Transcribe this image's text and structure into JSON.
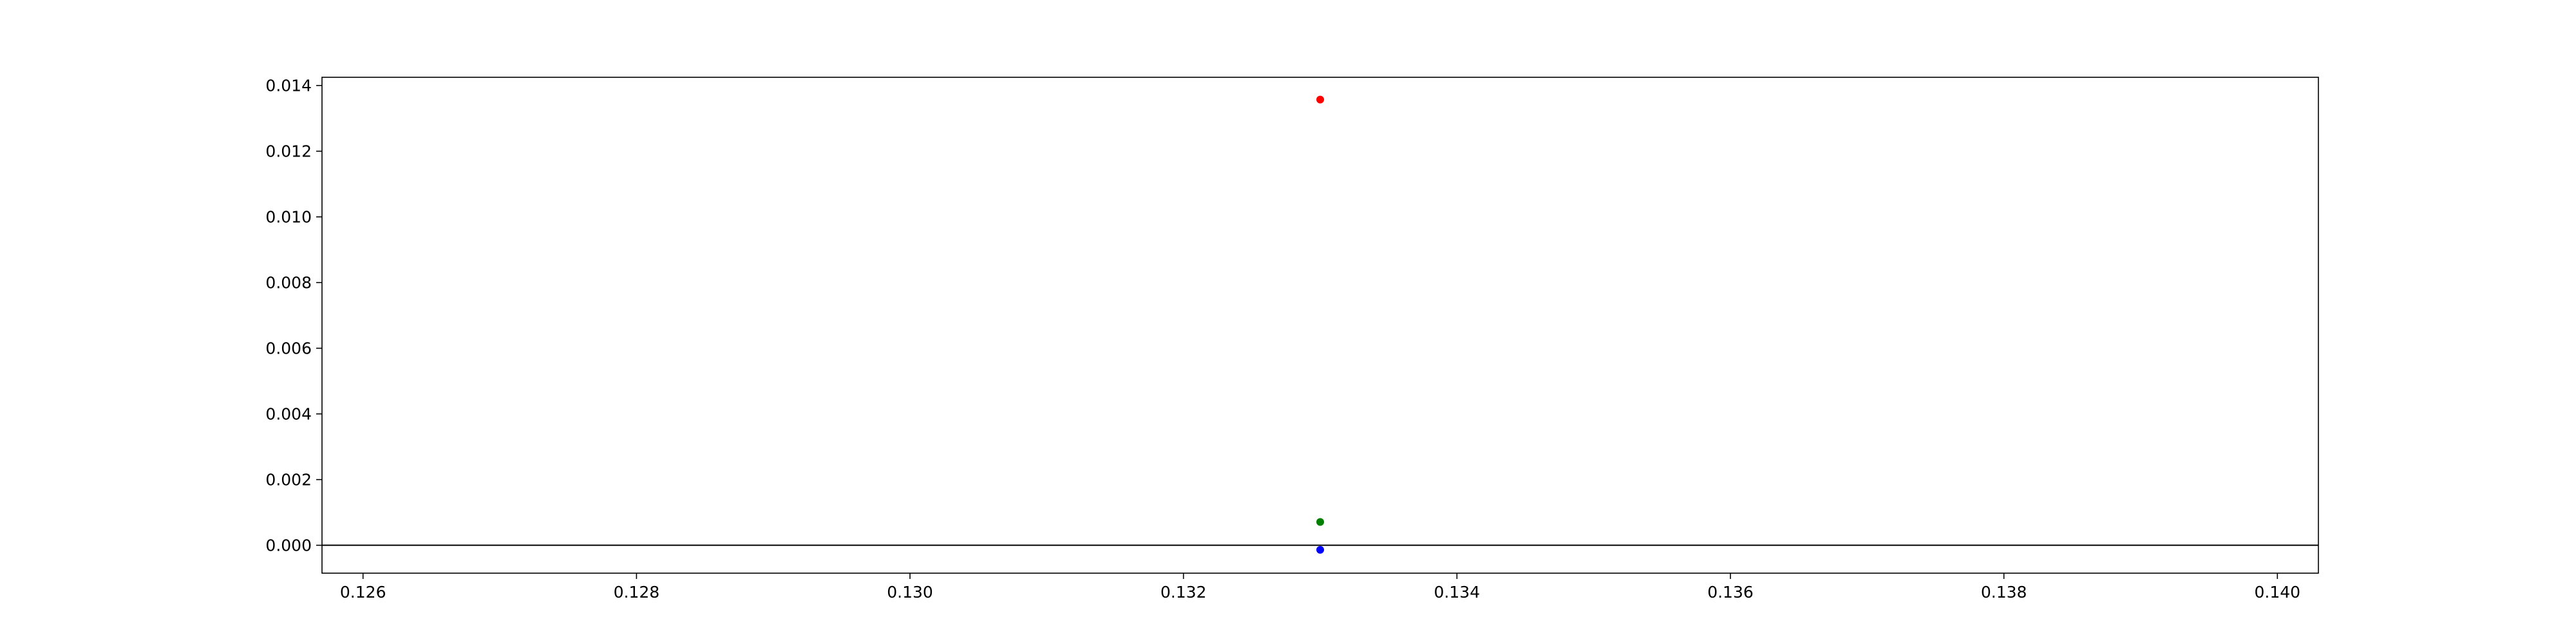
{
  "chart_data": {
    "type": "scatter",
    "title": "",
    "xlabel": "",
    "ylabel": "",
    "xlim": [
      0.1257,
      0.1403
    ],
    "ylim": [
      -0.00085,
      0.01425
    ],
    "grid": false,
    "x_ticks": [
      "0.126",
      "0.128",
      "0.130",
      "0.132",
      "0.134",
      "0.136",
      "0.138",
      "0.140"
    ],
    "y_ticks": [
      "0.000",
      "0.002",
      "0.004",
      "0.006",
      "0.008",
      "0.010",
      "0.012",
      "0.014"
    ],
    "hline": {
      "y": 0.0,
      "color": "#000000"
    },
    "series": [
      {
        "color": "#ff0000",
        "points": [
          {
            "x": 0.133,
            "y": 0.01357
          }
        ]
      },
      {
        "color": "#008000",
        "points": [
          {
            "x": 0.133,
            "y": 0.00071
          }
        ]
      },
      {
        "color": "#0000ff",
        "points": [
          {
            "x": 0.133,
            "y": -0.00014
          }
        ]
      }
    ]
  }
}
